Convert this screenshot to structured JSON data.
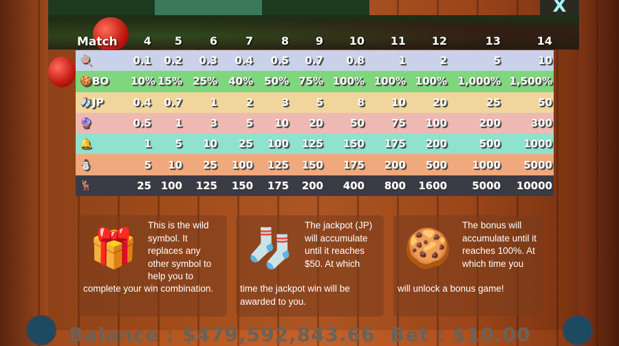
{
  "tabs": [
    {
      "label": "",
      "active": false
    },
    {
      "label": "",
      "active": true
    },
    {
      "label": "",
      "active": false
    }
  ],
  "close_label": "X",
  "table": {
    "header": [
      "Match",
      "4",
      "5",
      "6",
      "7",
      "8",
      "9",
      "10",
      "11",
      "12",
      "13",
      "14"
    ],
    "rows": [
      {
        "icon": "candy-cane-icon",
        "glyph": "🍭",
        "label": "",
        "color": "#c9d1eb",
        "values": [
          "0.1",
          "0.2",
          "0.3",
          "0.4",
          "0.5",
          "0.7",
          "0.8",
          "1",
          "2",
          "5",
          "10"
        ]
      },
      {
        "icon": "gingerbread-icon",
        "glyph": "🍪",
        "label": "BO",
        "color": "#7fd67c",
        "values": [
          "10%",
          "15%",
          "25%",
          "40%",
          "50%",
          "75%",
          "100%",
          "100%",
          "100%",
          "1,000%",
          "1,500%"
        ]
      },
      {
        "icon": "stocking-icon",
        "glyph": "🧦",
        "label": "JP",
        "color": "#f0d69c",
        "values": [
          "0.4",
          "0.7",
          "1",
          "2",
          "3",
          "5",
          "8",
          "10",
          "20",
          "25",
          "50"
        ]
      },
      {
        "icon": "ornament-icon",
        "glyph": "🔮",
        "label": "",
        "color": "#eeb9b2",
        "values": [
          "0.5",
          "1",
          "3",
          "5",
          "10",
          "20",
          "50",
          "75",
          "100",
          "200",
          "300"
        ]
      },
      {
        "icon": "bell-icon",
        "glyph": "🔔",
        "label": "",
        "color": "#8fe2cd",
        "values": [
          "1",
          "5",
          "10",
          "25",
          "100",
          "125",
          "150",
          "175",
          "200",
          "500",
          "1000"
        ]
      },
      {
        "icon": "snowman-icon",
        "glyph": "⛄",
        "label": "",
        "color": "#efa97d",
        "values": [
          "5",
          "10",
          "25",
          "100",
          "125",
          "150",
          "175",
          "200",
          "500",
          "1000",
          "5000"
        ]
      },
      {
        "icon": "reindeer-icon",
        "glyph": "🦌",
        "label": "",
        "color": "#3b3b45",
        "values": [
          "25",
          "100",
          "125",
          "150",
          "175",
          "200",
          "400",
          "800",
          "1600",
          "5000",
          "10000"
        ]
      }
    ]
  },
  "info": [
    {
      "icon": "wild-gift-icon",
      "glyph": "🎁",
      "t1": "This is the wild symbol. It replaces any other symbol to help you to",
      "t2": "complete your win combination."
    },
    {
      "icon": "stocking-icon",
      "glyph": "🧦",
      "t1": "The jackpot (JP) will accumulate until it reaches $50. At which",
      "t2": "time the jackpot win will be awarded to you."
    },
    {
      "icon": "gingerbread-icon",
      "glyph": "🍪",
      "t1": "The bonus will accumulate until it reaches 100%. At which time you",
      "t2": "will unlock a bonus game!"
    }
  ],
  "footer": {
    "balance": "Balance : $479,592,843.66",
    "bet": "Bet : $10.00"
  }
}
